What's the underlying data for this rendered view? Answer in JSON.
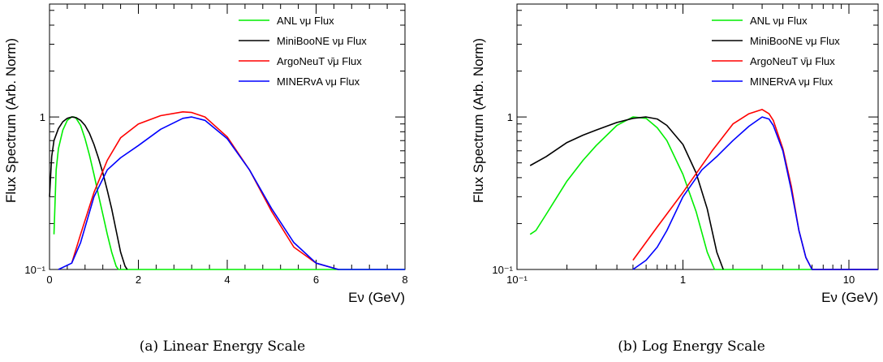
{
  "chart_data": [
    {
      "type": "line",
      "caption": "(a) Linear Energy Scale",
      "xlabel": "Eν (GeV)",
      "ylabel": "Flux Spectrum (Arb. Norm)",
      "xscale": "linear",
      "yscale": "log",
      "xlim": [
        0,
        8
      ],
      "ylim": [
        0.1,
        5.5
      ],
      "xticks": [
        0,
        2,
        4,
        6,
        8
      ],
      "xtick_labels": [
        "0",
        "2",
        "4",
        "6",
        "8"
      ],
      "yticks": [
        0.1,
        1
      ],
      "ytick_labels": [
        "10⁻¹",
        "1"
      ],
      "legend_position": "top-right",
      "series": [
        {
          "name": "ANL νμ Flux",
          "color": "#00ee00",
          "x": [
            0.1,
            0.15,
            0.2,
            0.3,
            0.4,
            0.5,
            0.55,
            0.6,
            0.7,
            0.8,
            0.9,
            1.0,
            1.1,
            1.2,
            1.3,
            1.4,
            1.5,
            1.55,
            1.6,
            8.0
          ],
          "y": [
            0.17,
            0.45,
            0.62,
            0.82,
            0.95,
            1.0,
            1.0,
            0.98,
            0.88,
            0.72,
            0.56,
            0.42,
            0.31,
            0.23,
            0.17,
            0.13,
            0.105,
            0.1,
            0.1,
            0.1
          ]
        },
        {
          "name": "MiniBooNE νμ Flux",
          "color": "#000000",
          "x": [
            0.0,
            0.05,
            0.1,
            0.2,
            0.3,
            0.4,
            0.5,
            0.6,
            0.7,
            0.8,
            0.9,
            1.0,
            1.1,
            1.2,
            1.3,
            1.4,
            1.5,
            1.6,
            1.7,
            1.75
          ],
          "y": [
            0.3,
            0.55,
            0.7,
            0.84,
            0.93,
            0.98,
            1.0,
            0.99,
            0.95,
            0.88,
            0.78,
            0.66,
            0.54,
            0.43,
            0.33,
            0.25,
            0.18,
            0.13,
            0.105,
            0.1
          ]
        },
        {
          "name": "ArgoNeuT ν̄μ Flux",
          "color": "#ff0000",
          "x": [
            0.5,
            0.7,
            1.0,
            1.3,
            1.6,
            2.0,
            2.5,
            3.0,
            3.2,
            3.5,
            4.0,
            4.5,
            5.0,
            5.5,
            6.0,
            6.5
          ],
          "y": [
            0.11,
            0.17,
            0.32,
            0.52,
            0.73,
            0.9,
            1.02,
            1.08,
            1.07,
            1.0,
            0.74,
            0.45,
            0.24,
            0.14,
            0.11,
            0.1
          ]
        },
        {
          "name": "MINERvA νμ Flux",
          "color": "#0000ff",
          "x": [
            0.2,
            0.5,
            0.7,
            1.0,
            1.3,
            1.6,
            2.0,
            2.5,
            3.0,
            3.2,
            3.5,
            4.0,
            4.5,
            5.0,
            5.5,
            6.0,
            6.5,
            7.0,
            8.0
          ],
          "y": [
            0.1,
            0.11,
            0.15,
            0.3,
            0.45,
            0.54,
            0.65,
            0.83,
            0.98,
            1.0,
            0.95,
            0.72,
            0.45,
            0.25,
            0.15,
            0.11,
            0.1,
            0.1,
            0.1
          ]
        }
      ]
    },
    {
      "type": "line",
      "caption": "(b) Log Energy Scale",
      "xlabel": "Eν (GeV)",
      "ylabel": "Flux Spectrum (Arb. Norm)",
      "xscale": "log",
      "yscale": "log",
      "xlim": [
        0.1,
        15
      ],
      "ylim": [
        0.1,
        5.5
      ],
      "xticks": [
        0.1,
        1,
        10
      ],
      "xtick_labels": [
        "10⁻¹",
        "1",
        "10"
      ],
      "yticks": [
        0.1,
        1
      ],
      "ytick_labels": [
        "10⁻¹",
        "1"
      ],
      "legend_position": "top-right",
      "series": [
        {
          "name": "ANL νμ Flux",
          "color": "#00ee00",
          "x": [
            0.12,
            0.13,
            0.15,
            0.2,
            0.25,
            0.3,
            0.4,
            0.5,
            0.6,
            0.7,
            0.8,
            1.0,
            1.2,
            1.4,
            1.55,
            1.6,
            15
          ],
          "y": [
            0.17,
            0.18,
            0.23,
            0.38,
            0.52,
            0.65,
            0.88,
            1.0,
            0.98,
            0.85,
            0.7,
            0.42,
            0.24,
            0.13,
            0.1,
            0.1,
            0.1
          ]
        },
        {
          "name": "MiniBooNE νμ Flux",
          "color": "#000000",
          "x": [
            0.12,
            0.15,
            0.2,
            0.25,
            0.3,
            0.4,
            0.5,
            0.6,
            0.7,
            0.8,
            1.0,
            1.2,
            1.4,
            1.6,
            1.75
          ],
          "y": [
            0.48,
            0.55,
            0.68,
            0.76,
            0.82,
            0.92,
            0.98,
            1.0,
            0.97,
            0.88,
            0.66,
            0.43,
            0.25,
            0.13,
            0.1
          ]
        },
        {
          "name": "ArgoNeuT ν̄μ Flux",
          "color": "#ff0000",
          "x": [
            0.5,
            0.7,
            1.0,
            1.5,
            2.0,
            2.5,
            3.0,
            3.3,
            3.5,
            4.0,
            4.5,
            5.0,
            5.5,
            6.0,
            15
          ],
          "y": [
            0.115,
            0.19,
            0.32,
            0.6,
            0.9,
            1.05,
            1.12,
            1.05,
            0.95,
            0.62,
            0.35,
            0.18,
            0.12,
            0.1,
            0.1
          ]
        },
        {
          "name": "MINERvA νμ Flux",
          "color": "#0000ff",
          "x": [
            0.5,
            0.6,
            0.7,
            0.8,
            1.0,
            1.3,
            1.6,
            2.0,
            2.5,
            3.0,
            3.3,
            3.5,
            4.0,
            4.5,
            5.0,
            5.5,
            6.0,
            15
          ],
          "y": [
            0.1,
            0.115,
            0.14,
            0.18,
            0.3,
            0.45,
            0.55,
            0.7,
            0.87,
            1.0,
            0.97,
            0.88,
            0.6,
            0.33,
            0.18,
            0.12,
            0.1,
            0.1
          ]
        }
      ]
    }
  ]
}
